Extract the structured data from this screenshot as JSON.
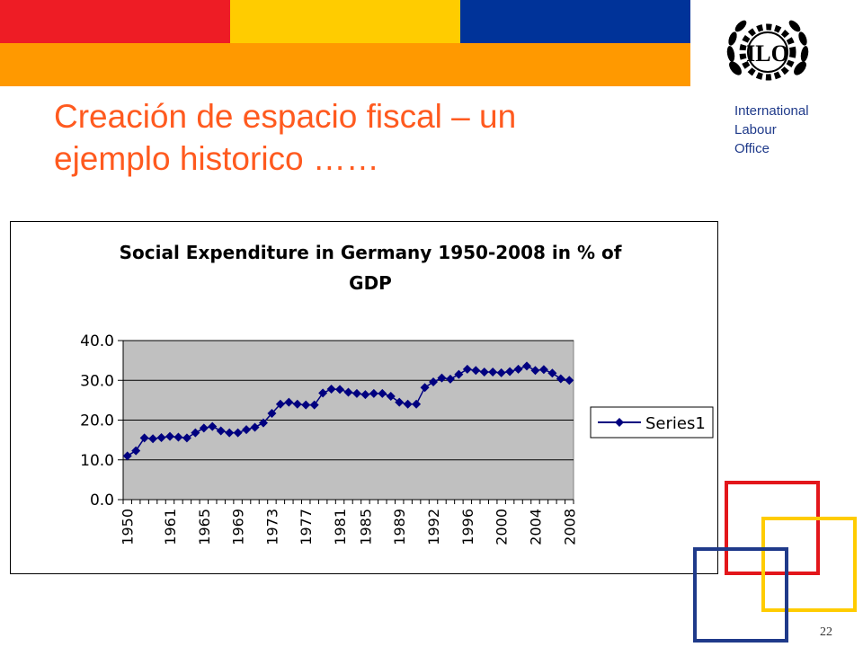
{
  "slide": {
    "title_line1": "Creación de espacio fiscal – un",
    "title_line2": "ejemplo historico ……",
    "org_line1": "International",
    "org_line2": "Labour",
    "org_line3": "Office",
    "logo_text": "ILO",
    "page_number": "22"
  },
  "colors": {
    "band_red": "#ee1c25",
    "band_yellow": "#ffcc00",
    "band_blue": "#003399",
    "band_orange": "#ff9900",
    "title": "#ff5a1f",
    "series": "#000080",
    "plot_background": "#c0c0c0"
  },
  "chart_data": {
    "type": "line",
    "title_line1": "Social Expenditure in Germany 1950-2008 in % of",
    "title_line2": "GDP",
    "xlabel": "",
    "ylabel": "",
    "ylim": [
      0,
      40
    ],
    "yticks": [
      "0.0",
      "10.0",
      "20.0",
      "30.0",
      "40.0"
    ],
    "xtick_labels": [
      "1950",
      "1961",
      "1965",
      "1969",
      "1973",
      "1977",
      "1981",
      "1985",
      "1989",
      "1992",
      "1996",
      "2000",
      "2004",
      "2008"
    ],
    "grid": true,
    "legend": "right",
    "series": [
      {
        "name": "Series1",
        "values": [
          11.0,
          12.3,
          15.5,
          15.3,
          15.6,
          15.9,
          15.7,
          15.5,
          16.8,
          18.0,
          18.4,
          17.3,
          16.8,
          16.8,
          17.6,
          18.2,
          19.3,
          21.7,
          24.0,
          24.5,
          24.0,
          23.8,
          23.8,
          26.8,
          27.8,
          27.7,
          27.0,
          26.7,
          26.4,
          26.7,
          26.7,
          26.0,
          24.5,
          24.0,
          24.0,
          28.2,
          29.6,
          30.6,
          30.3,
          31.5,
          32.8,
          32.5,
          32.1,
          32.1,
          31.9,
          32.2,
          32.8,
          33.6,
          32.5,
          32.7,
          31.8,
          30.4,
          30.0
        ]
      }
    ]
  }
}
